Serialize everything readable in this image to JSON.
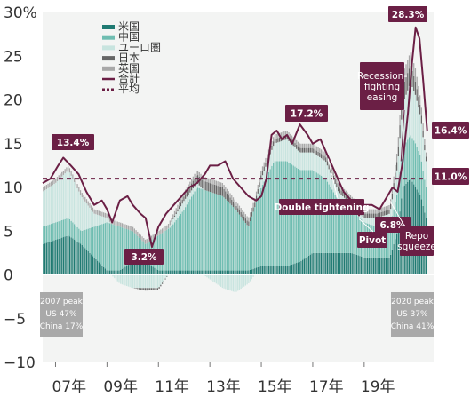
{
  "chart_data": {
    "type": "area",
    "ylim": [
      -10,
      30
    ],
    "y_ticks": [
      -10,
      -5,
      0,
      5,
      10,
      15,
      20,
      25,
      30
    ],
    "y_tick_labels": [
      "−10",
      "−5",
      "0",
      "5",
      "10",
      "15",
      "20",
      "25",
      "30%"
    ],
    "x_tick_labels": [
      "07年",
      "09年",
      "11年",
      "13年",
      "15年",
      "17年",
      "19年"
    ],
    "x_tick_years": [
      2007,
      2009,
      2011,
      2013,
      2015,
      2017,
      2019
    ],
    "xlim": [
      2006.5,
      2021.7
    ],
    "average": 11.0,
    "colors": {
      "us": "#1f7a72",
      "china": "#6fbdb1",
      "euro": "#c8e4df",
      "japan": "#666666",
      "uk": "#a8a8a8",
      "total": "#6b1f45",
      "callout": "#6b1f45",
      "note_box": "#a9a9a9"
    },
    "series": [
      {
        "name": "米国",
        "x": [
          2006.5,
          2007.0,
          2007.5,
          2008.0,
          2008.5,
          2009.0,
          2009.5,
          2010.0,
          2010.5,
          2011.0,
          2011.5,
          2012.0,
          2012.5,
          2013.0,
          2013.5,
          2014.0,
          2014.5,
          2015.0,
          2015.5,
          2016.0,
          2016.5,
          2017.0,
          2017.5,
          2018.0,
          2018.5,
          2019.0,
          2019.5,
          2020.0,
          2020.3,
          2020.5,
          2020.8,
          2021.0,
          2021.2,
          2021.4
        ],
        "values": [
          3.5,
          4.0,
          4.5,
          3.5,
          2.0,
          0.5,
          0.5,
          1.5,
          1.5,
          0.5,
          0.5,
          0.5,
          0.5,
          0.5,
          0.5,
          0.5,
          0.5,
          1.0,
          1.0,
          1.0,
          1.5,
          2.5,
          2.5,
          2.5,
          2.5,
          2.0,
          2.0,
          2.0,
          5.0,
          10.0,
          11.0,
          10.0,
          9.0,
          6.5
        ]
      },
      {
        "name": "中国",
        "x": [
          2006.5,
          2007.0,
          2007.5,
          2008.0,
          2008.5,
          2009.0,
          2009.5,
          2010.0,
          2010.5,
          2011.0,
          2011.5,
          2012.0,
          2012.5,
          2013.0,
          2013.5,
          2014.0,
          2014.5,
          2015.0,
          2015.5,
          2016.0,
          2016.5,
          2017.0,
          2017.5,
          2018.0,
          2018.5,
          2019.0,
          2019.5,
          2020.0,
          2020.3,
          2020.5,
          2020.8,
          2021.0,
          2021.2,
          2021.4
        ],
        "values": [
          2.0,
          2.0,
          2.0,
          1.5,
          3.5,
          5.5,
          5.0,
          3.5,
          2.0,
          4.0,
          5.0,
          7.0,
          9.5,
          9.0,
          8.5,
          7.0,
          5.0,
          9.0,
          12.0,
          12.0,
          10.5,
          9.5,
          8.5,
          6.0,
          5.0,
          4.0,
          3.5,
          3.5,
          4.5,
          4.5,
          5.0,
          5.0,
          4.5,
          3.5
        ]
      },
      {
        "name": "ユーロ圏",
        "x": [
          2006.5,
          2007.0,
          2007.5,
          2008.0,
          2008.5,
          2009.0,
          2009.5,
          2010.0,
          2010.5,
          2011.0,
          2011.5,
          2012.0,
          2012.5,
          2013.0,
          2013.5,
          2014.0,
          2014.5,
          2015.0,
          2015.5,
          2016.0,
          2016.5,
          2017.0,
          2017.5,
          2018.0,
          2018.5,
          2019.0,
          2019.5,
          2020.0,
          2020.3,
          2020.5,
          2020.8,
          2021.0,
          2021.2,
          2021.4
        ],
        "values": [
          4.0,
          4.5,
          5.5,
          4.0,
          1.5,
          0.5,
          -1.0,
          -1.5,
          -1.5,
          -1.5,
          0.5,
          1.0,
          0.5,
          -0.5,
          -1.5,
          -2.0,
          -1.0,
          1.0,
          2.0,
          2.5,
          2.0,
          2.0,
          2.0,
          1.0,
          0.5,
          0.5,
          1.0,
          1.5,
          3.0,
          5.0,
          6.0,
          5.5,
          4.5,
          3.0
        ]
      },
      {
        "name": "日本",
        "x": [
          2006.5,
          2007.0,
          2007.5,
          2008.0,
          2008.5,
          2009.0,
          2009.5,
          2010.0,
          2010.5,
          2011.0,
          2011.5,
          2012.0,
          2012.5,
          2013.0,
          2013.5,
          2014.0,
          2014.5,
          2015.0,
          2015.5,
          2016.0,
          2016.5,
          2017.0,
          2017.5,
          2018.0,
          2018.5,
          2019.0,
          2019.5,
          2020.0,
          2020.3,
          2020.5,
          2020.8,
          2021.0,
          2021.2,
          2021.4
        ],
        "values": [
          0.0,
          0.0,
          0.0,
          0.0,
          0.0,
          0.0,
          0.0,
          0.0,
          -0.3,
          -0.2,
          0.0,
          0.5,
          1.0,
          1.0,
          1.0,
          0.5,
          0.5,
          0.5,
          0.5,
          0.5,
          0.5,
          0.5,
          0.5,
          0.5,
          0.5,
          0.5,
          0.5,
          0.5,
          1.0,
          2.0,
          2.0,
          1.5,
          1.0,
          0.5
        ]
      },
      {
        "name": "英国",
        "x": [
          2006.5,
          2007.0,
          2007.5,
          2008.0,
          2008.5,
          2009.0,
          2009.5,
          2010.0,
          2010.5,
          2011.0,
          2011.5,
          2012.0,
          2012.5,
          2013.0,
          2013.5,
          2014.0,
          2014.5,
          2015.0,
          2015.5,
          2016.0,
          2016.5,
          2017.0,
          2017.5,
          2018.0,
          2018.5,
          2019.0,
          2019.5,
          2020.0,
          2020.3,
          2020.5,
          2020.8,
          2021.0,
          2021.2,
          2021.4
        ],
        "values": [
          0.5,
          0.5,
          0.5,
          0.5,
          0.5,
          0.5,
          0.5,
          0.5,
          0.5,
          0.5,
          0.5,
          0.5,
          0.5,
          0.5,
          0.5,
          0.5,
          0.5,
          0.5,
          0.5,
          0.5,
          0.5,
          0.5,
          0.5,
          0.5,
          0.5,
          0.5,
          0.5,
          0.5,
          1.0,
          1.5,
          1.5,
          1.5,
          1.0,
          0.5
        ]
      },
      {
        "name": "合計",
        "x": [
          2006.5,
          2006.8,
          2007.1,
          2007.3,
          2007.6,
          2007.9,
          2008.2,
          2008.5,
          2008.8,
          2009.0,
          2009.2,
          2009.5,
          2009.8,
          2010.0,
          2010.3,
          2010.5,
          2010.75,
          2011.0,
          2011.3,
          2011.6,
          2011.9,
          2012.2,
          2012.5,
          2012.8,
          2013.0,
          2013.3,
          2013.6,
          2013.9,
          2014.2,
          2014.5,
          2014.8,
          2015.0,
          2015.2,
          2015.4,
          2015.6,
          2015.8,
          2016.0,
          2016.2,
          2016.5,
          2016.8,
          2017.0,
          2017.3,
          2017.6,
          2017.9,
          2018.2,
          2018.5,
          2018.8,
          2019.0,
          2019.3,
          2019.6,
          2019.9,
          2020.1,
          2020.3,
          2020.5,
          2020.7,
          2020.85,
          2021.0,
          2021.15,
          2021.3,
          2021.45
        ],
        "values": [
          10.5,
          11.0,
          12.5,
          13.4,
          12.5,
          11.5,
          9.5,
          8.0,
          8.5,
          7.5,
          6.0,
          8.5,
          9.0,
          8.0,
          7.0,
          6.5,
          3.2,
          5.5,
          7.0,
          8.0,
          9.0,
          10.0,
          10.5,
          11.5,
          12.5,
          12.5,
          13.0,
          11.0,
          10.0,
          9.0,
          8.5,
          9.0,
          11.0,
          16.0,
          16.5,
          15.5,
          16.0,
          15.0,
          17.2,
          16.0,
          15.0,
          15.5,
          13.5,
          11.5,
          9.5,
          8.5,
          6.8,
          8.0,
          8.0,
          7.5,
          9.0,
          10.0,
          9.5,
          13.0,
          18.5,
          24.0,
          28.3,
          27.0,
          22.0,
          16.4
        ]
      }
    ],
    "legend": [
      {
        "label": "米国",
        "kind": "swatch",
        "color_key": "us"
      },
      {
        "label": "中国",
        "kind": "swatch",
        "color_key": "china"
      },
      {
        "label": "ユーロ圏",
        "kind": "swatch",
        "color_key": "euro"
      },
      {
        "label": "日本",
        "kind": "swatch",
        "color_key": "japan"
      },
      {
        "label": "英国",
        "kind": "swatch",
        "color_key": "uk"
      },
      {
        "label": "合計",
        "kind": "line",
        "color_key": "total"
      },
      {
        "label": "平均",
        "kind": "dash",
        "color_key": "total"
      }
    ],
    "legend_placement": "top-left",
    "annotations": [
      {
        "text": "13.4%",
        "x": 2007.3,
        "y": 13.4
      },
      {
        "text": "3.2%",
        "x": 2010.75,
        "y": 3.2
      },
      {
        "text": "17.2%",
        "x": 2016.5,
        "y": 17.2
      },
      {
        "text": "6.8%",
        "x": 2018.8,
        "y": 6.8
      },
      {
        "text": "28.3%",
        "x": 2021.0,
        "y": 28.3
      },
      {
        "text": "16.4%",
        "x": 2021.45,
        "y": 16.4
      },
      {
        "text": "11.0%",
        "x": 2021.45,
        "y": 11.0
      },
      {
        "text": "Double tightening"
      },
      {
        "text": "Pivot"
      },
      {
        "text": "Recession-fighting easing"
      },
      {
        "text": "Repo squeeze"
      }
    ],
    "notes": [
      {
        "lines": [
          "2007 peak",
          "US 47%",
          "China 17%"
        ]
      },
      {
        "lines": [
          "2020 peak",
          "US 37%",
          "China 41%"
        ]
      }
    ]
  }
}
